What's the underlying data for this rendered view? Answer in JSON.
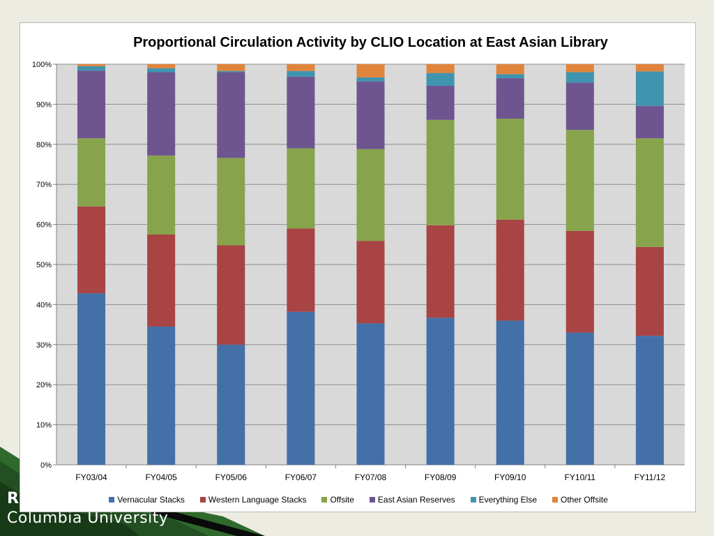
{
  "footer": {
    "letter": "R",
    "institution": "Columbia University"
  },
  "chart_data": {
    "type": "bar",
    "stacked": true,
    "percent": true,
    "title": "Proportional Circulation Activity by CLIO Location at East Asian Library",
    "categories": [
      "FY03/04",
      "FY04/05",
      "FY05/06",
      "FY06/07",
      "FY07/08",
      "FY08/09",
      "FY09/10",
      "FY10/11",
      "FY11/12"
    ],
    "y_ticks": [
      "0%",
      "10%",
      "20%",
      "30%",
      "40%",
      "50%",
      "60%",
      "70%",
      "80%",
      "90%",
      "100%"
    ],
    "ylim": [
      0,
      100
    ],
    "grid": true,
    "legend_position": "bottom",
    "series": [
      {
        "name": "Vernacular Stacks",
        "color": "#4470a8",
        "values": [
          42.8,
          34.5,
          30.0,
          38.2,
          35.3,
          36.7,
          36.0,
          33.0,
          32.2
        ]
      },
      {
        "name": "Western Language Stacks",
        "color": "#a84444",
        "values": [
          21.7,
          23.0,
          24.8,
          20.8,
          20.6,
          23.1,
          25.2,
          25.4,
          22.2
        ]
      },
      {
        "name": "Offsite",
        "color": "#87a44c",
        "values": [
          17.0,
          19.7,
          21.8,
          20.0,
          22.9,
          26.3,
          25.2,
          25.2,
          27.1
        ]
      },
      {
        "name": "East Asian Reserves",
        "color": "#6e5590",
        "values": [
          16.9,
          20.8,
          21.4,
          17.9,
          16.9,
          8.5,
          10.1,
          11.8,
          8.1
        ]
      },
      {
        "name": "Everything Else",
        "color": "#3f95b0",
        "values": [
          1.1,
          1.0,
          0.3,
          1.4,
          1.0,
          3.2,
          1.0,
          2.6,
          8.6
        ]
      },
      {
        "name": "Other Offsite",
        "color": "#e0843c",
        "values": [
          0.5,
          1.0,
          1.7,
          1.7,
          3.3,
          2.2,
          2.5,
          2.0,
          1.8
        ]
      }
    ]
  }
}
